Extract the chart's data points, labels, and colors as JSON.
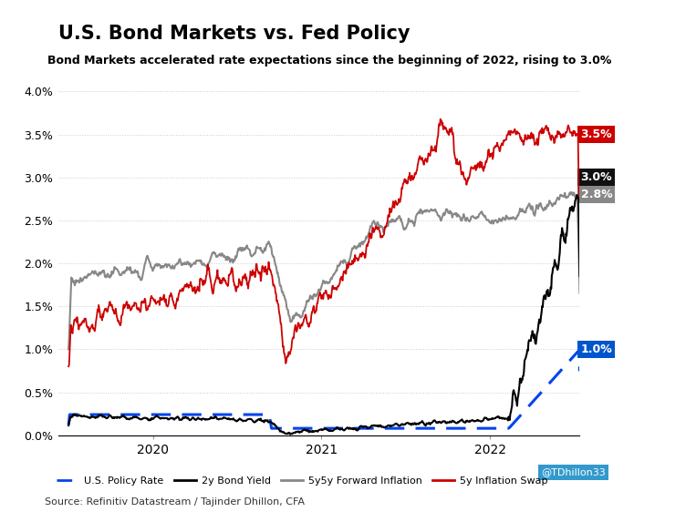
{
  "title": "U.S. Bond Markets vs. Fed Policy",
  "subtitle": "Bond Markets accelerated rate expectations since the beginning of 2022, rising to 3.0%",
  "source": "Source: Refinitiv Datastream / Tajinder Dhillon, CFA",
  "watermark": "@TDhillon33",
  "watermark_color": "#3399cc",
  "ylim": [
    0.0,
    0.042
  ],
  "yticks": [
    0.0,
    0.005,
    0.01,
    0.015,
    0.02,
    0.025,
    0.03,
    0.035,
    0.04
  ],
  "ytick_labels": [
    "0.0%",
    "0.5%",
    "1.0%",
    "1.5%",
    "2.0%",
    "2.5%",
    "3.0%",
    "3.5%",
    "4.0%"
  ],
  "xtick_positions": [
    0.165,
    0.495,
    0.825
  ],
  "xtick_labels": [
    "2020",
    "2021",
    "2022"
  ],
  "background_color": "#ffffff",
  "grid_color": "#cccccc",
  "title_color": "#000000",
  "subtitle_color": "#000000",
  "ann_35_bg": "#cc0000",
  "ann_30_bg": "#111111",
  "ann_28_bg": "#888888",
  "ann_10_bg": "#0055cc",
  "ann_fg": "#ffffff",
  "ann_fontsize": 9,
  "title_fontsize": 15,
  "subtitle_fontsize": 9,
  "legend_fontsize": 8,
  "source_fontsize": 8,
  "policy_color": "#0044ee",
  "bond2y_color": "#000000",
  "gray_color": "#888888",
  "red_color": "#cc0000"
}
